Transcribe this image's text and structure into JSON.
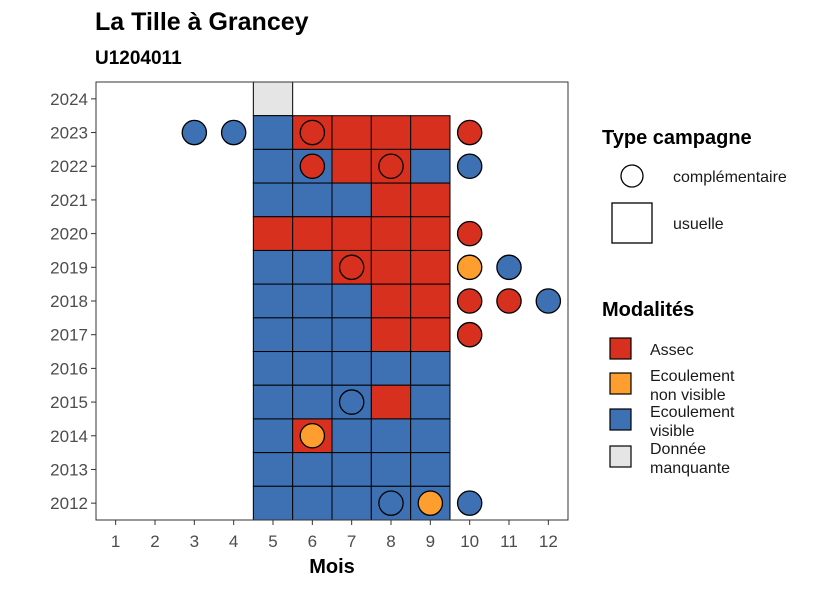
{
  "chart_data": {
    "type": "heatmap",
    "title": "La Tille à Grancey",
    "subtitle": "U1204011",
    "xlabel": "Mois",
    "ylabel": "",
    "x_ticks": [
      1,
      2,
      3,
      4,
      5,
      6,
      7,
      8,
      9,
      10,
      11,
      12
    ],
    "y_ticks": [
      2012,
      2013,
      2014,
      2015,
      2016,
      2017,
      2018,
      2019,
      2020,
      2021,
      2022,
      2023,
      2024
    ],
    "xlim": [
      0.5,
      12.5
    ],
    "ylim": [
      2011.5,
      2024.5
    ],
    "grid": false,
    "colors": {
      "Assec": "#d7301f",
      "Ecoulement non visible": "#fd9e2f",
      "Ecoulement visible": "#3e71b3",
      "Donnée manquante": "#e5e5e5"
    },
    "usuelle": [
      {
        "year": 2024,
        "months": [
          {
            "m": 5,
            "v": "Donnée manquante"
          }
        ]
      },
      {
        "year": 2023,
        "months": [
          {
            "m": 5,
            "v": "Ecoulement visible"
          },
          {
            "m": 6,
            "v": "Assec"
          },
          {
            "m": 7,
            "v": "Assec"
          },
          {
            "m": 8,
            "v": "Assec"
          },
          {
            "m": 9,
            "v": "Assec"
          }
        ]
      },
      {
        "year": 2022,
        "months": [
          {
            "m": 5,
            "v": "Ecoulement visible"
          },
          {
            "m": 6,
            "v": "Ecoulement visible"
          },
          {
            "m": 7,
            "v": "Assec"
          },
          {
            "m": 8,
            "v": "Assec"
          },
          {
            "m": 9,
            "v": "Ecoulement visible"
          }
        ]
      },
      {
        "year": 2021,
        "months": [
          {
            "m": 5,
            "v": "Ecoulement visible"
          },
          {
            "m": 6,
            "v": "Ecoulement visible"
          },
          {
            "m": 7,
            "v": "Ecoulement visible"
          },
          {
            "m": 8,
            "v": "Assec"
          },
          {
            "m": 9,
            "v": "Assec"
          }
        ]
      },
      {
        "year": 2020,
        "months": [
          {
            "m": 5,
            "v": "Assec"
          },
          {
            "m": 6,
            "v": "Assec"
          },
          {
            "m": 7,
            "v": "Assec"
          },
          {
            "m": 8,
            "v": "Assec"
          },
          {
            "m": 9,
            "v": "Assec"
          }
        ]
      },
      {
        "year": 2019,
        "months": [
          {
            "m": 5,
            "v": "Ecoulement visible"
          },
          {
            "m": 6,
            "v": "Ecoulement visible"
          },
          {
            "m": 7,
            "v": "Assec"
          },
          {
            "m": 8,
            "v": "Assec"
          },
          {
            "m": 9,
            "v": "Assec"
          }
        ]
      },
      {
        "year": 2018,
        "months": [
          {
            "m": 5,
            "v": "Ecoulement visible"
          },
          {
            "m": 6,
            "v": "Ecoulement visible"
          },
          {
            "m": 7,
            "v": "Ecoulement visible"
          },
          {
            "m": 8,
            "v": "Assec"
          },
          {
            "m": 9,
            "v": "Assec"
          }
        ]
      },
      {
        "year": 2017,
        "months": [
          {
            "m": 5,
            "v": "Ecoulement visible"
          },
          {
            "m": 6,
            "v": "Ecoulement visible"
          },
          {
            "m": 7,
            "v": "Ecoulement visible"
          },
          {
            "m": 8,
            "v": "Assec"
          },
          {
            "m": 9,
            "v": "Assec"
          }
        ]
      },
      {
        "year": 2016,
        "months": [
          {
            "m": 5,
            "v": "Ecoulement visible"
          },
          {
            "m": 6,
            "v": "Ecoulement visible"
          },
          {
            "m": 7,
            "v": "Ecoulement visible"
          },
          {
            "m": 8,
            "v": "Ecoulement visible"
          },
          {
            "m": 9,
            "v": "Ecoulement visible"
          }
        ]
      },
      {
        "year": 2015,
        "months": [
          {
            "m": 5,
            "v": "Ecoulement visible"
          },
          {
            "m": 6,
            "v": "Ecoulement visible"
          },
          {
            "m": 7,
            "v": "Ecoulement visible"
          },
          {
            "m": 8,
            "v": "Assec"
          },
          {
            "m": 9,
            "v": "Ecoulement visible"
          }
        ]
      },
      {
        "year": 2014,
        "months": [
          {
            "m": 5,
            "v": "Ecoulement visible"
          },
          {
            "m": 6,
            "v": "Assec"
          },
          {
            "m": 7,
            "v": "Ecoulement visible"
          },
          {
            "m": 8,
            "v": "Ecoulement visible"
          },
          {
            "m": 9,
            "v": "Ecoulement visible"
          }
        ]
      },
      {
        "year": 2013,
        "months": [
          {
            "m": 5,
            "v": "Ecoulement visible"
          },
          {
            "m": 6,
            "v": "Ecoulement visible"
          },
          {
            "m": 7,
            "v": "Ecoulement visible"
          },
          {
            "m": 8,
            "v": "Ecoulement visible"
          },
          {
            "m": 9,
            "v": "Ecoulement visible"
          }
        ]
      },
      {
        "year": 2012,
        "months": [
          {
            "m": 5,
            "v": "Ecoulement visible"
          },
          {
            "m": 6,
            "v": "Ecoulement visible"
          },
          {
            "m": 7,
            "v": "Ecoulement visible"
          },
          {
            "m": 8,
            "v": "Ecoulement visible"
          },
          {
            "m": 9,
            "v": "Ecoulement visible"
          }
        ]
      }
    ],
    "complementaire": [
      {
        "year": 2023,
        "m": 3,
        "v": "Ecoulement visible"
      },
      {
        "year": 2023,
        "m": 4,
        "v": "Ecoulement visible"
      },
      {
        "year": 2023,
        "m": 6,
        "v": "Assec"
      },
      {
        "year": 2023,
        "m": 10,
        "v": "Assec"
      },
      {
        "year": 2022,
        "m": 6,
        "v": "Assec"
      },
      {
        "year": 2022,
        "m": 8,
        "v": "Assec"
      },
      {
        "year": 2022,
        "m": 10,
        "v": "Ecoulement visible"
      },
      {
        "year": 2020,
        "m": 10,
        "v": "Assec"
      },
      {
        "year": 2019,
        "m": 7,
        "v": "Assec"
      },
      {
        "year": 2019,
        "m": 10,
        "v": "Ecoulement non visible"
      },
      {
        "year": 2019,
        "m": 11,
        "v": "Ecoulement visible"
      },
      {
        "year": 2018,
        "m": 10,
        "v": "Assec"
      },
      {
        "year": 2018,
        "m": 11,
        "v": "Assec"
      },
      {
        "year": 2018,
        "m": 12,
        "v": "Ecoulement visible"
      },
      {
        "year": 2017,
        "m": 10,
        "v": "Assec"
      },
      {
        "year": 2015,
        "m": 7,
        "v": "Ecoulement visible"
      },
      {
        "year": 2014,
        "m": 6,
        "v": "Ecoulement non visible"
      },
      {
        "year": 2012,
        "m": 8,
        "v": "Ecoulement visible"
      },
      {
        "year": 2012,
        "m": 9,
        "v": "Ecoulement non visible"
      },
      {
        "year": 2012,
        "m": 10,
        "v": "Ecoulement visible"
      }
    ],
    "legend": {
      "placement": "right",
      "type_title": "Type campagne",
      "type_entries": [
        "complémentaire",
        "usuelle"
      ],
      "mod_title": "Modalités",
      "mod_entries": [
        {
          "key": "Assec",
          "lines": [
            "Assec"
          ]
        },
        {
          "key": "Ecoulement non visible",
          "lines": [
            "Ecoulement",
            "non visible"
          ]
        },
        {
          "key": "Ecoulement visible",
          "lines": [
            "Ecoulement",
            "visible"
          ]
        },
        {
          "key": "Donnée manquante",
          "lines": [
            "Donnée",
            "manquante"
          ]
        }
      ]
    }
  }
}
